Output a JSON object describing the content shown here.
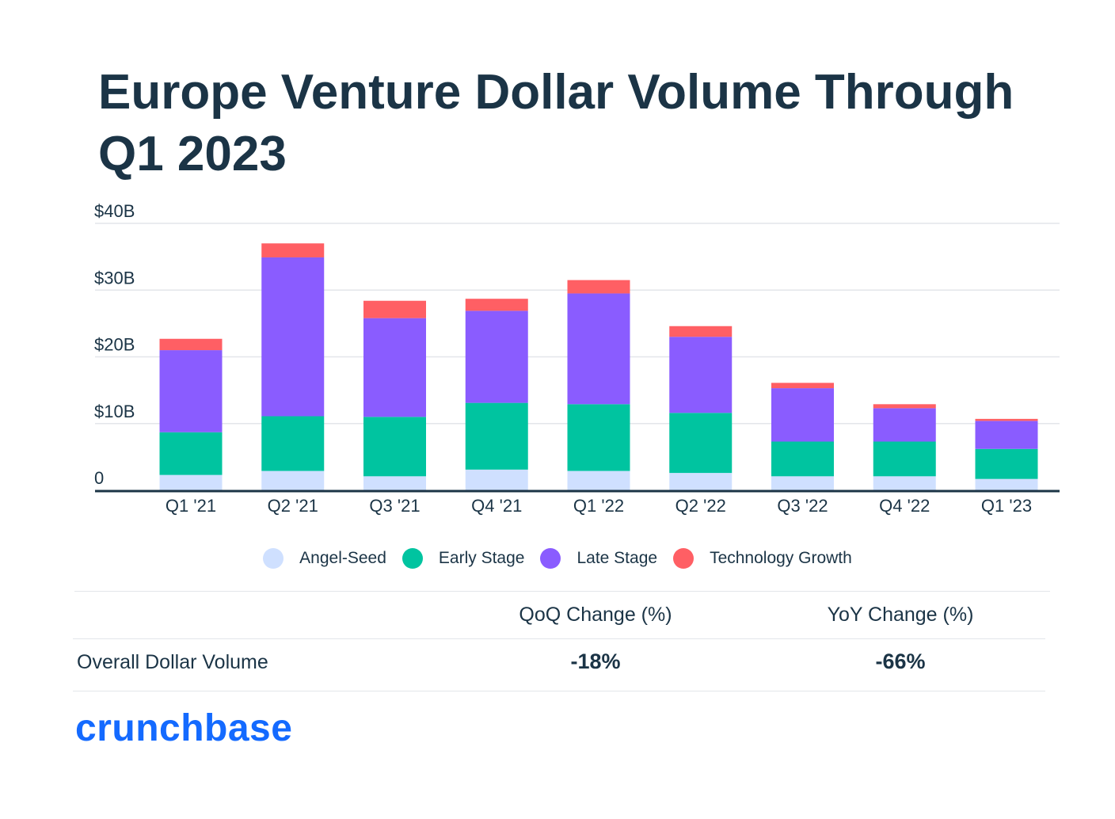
{
  "title": "Europe Venture Dollar Volume Through Q1 2023",
  "colors": {
    "angel_seed": "#cfe0ff",
    "early_stage": "#00c4a0",
    "late_stage": "#8a5cff",
    "technology_growth": "#ff5f64"
  },
  "chart_data": {
    "type": "bar",
    "stacked": true,
    "title": "Europe Venture Dollar Volume Through Q1 2023",
    "categories": [
      "Q1 '21",
      "Q2 '21",
      "Q3 '21",
      "Q4 '21",
      "Q1 '22",
      "Q2 '22",
      "Q3 '22",
      "Q4 '22",
      "Q1 '23"
    ],
    "y_ticks": [
      "0",
      "$10B",
      "$20B",
      "$30B",
      "$40B"
    ],
    "ylim": [
      0,
      40
    ],
    "grid": true,
    "legend_position": "bottom-center",
    "series": [
      {
        "name": "Angel-Seed",
        "values": [
          2.3,
          2.9,
          2.1,
          3.1,
          2.9,
          2.6,
          2.1,
          2.1,
          1.7
        ]
      },
      {
        "name": "Early Stage",
        "values": [
          6.4,
          8.2,
          8.9,
          10.0,
          10.0,
          9.0,
          5.2,
          5.2,
          4.5
        ]
      },
      {
        "name": "Late Stage",
        "values": [
          12.3,
          23.8,
          14.8,
          13.8,
          16.6,
          11.4,
          8.0,
          5.0,
          4.2
        ]
      },
      {
        "name": "Technology Growth",
        "values": [
          1.7,
          2.1,
          2.6,
          1.8,
          2.0,
          1.6,
          0.8,
          0.6,
          0.3
        ]
      }
    ]
  },
  "legend": [
    "Angel-Seed",
    "Early Stage",
    "Late Stage",
    "Technology Growth"
  ],
  "table": {
    "headers": [
      "QoQ Change (%)",
      "YoY Change (%)"
    ],
    "row_label": "Overall Dollar Volume",
    "qoq": "-18%",
    "yoy": "-66%"
  },
  "logo": "crunchbase"
}
